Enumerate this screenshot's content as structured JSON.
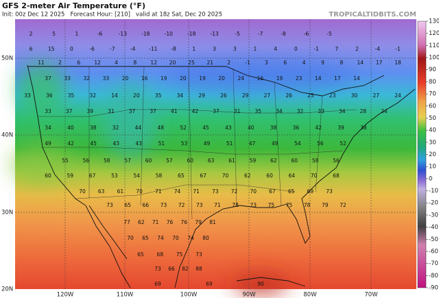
{
  "header": {
    "title": "GFS 2-meter Air Temperature (°F)",
    "subtitle": "Init: 00z Dec 12 2025   Forecast Hour: [210]   valid at 18z Sat, Dec 20 2025",
    "source": "TROPICALTIDBITS.COM"
  },
  "map": {
    "lat_labels": [
      "50N",
      "40N",
      "30N",
      "20N"
    ],
    "lon_labels": [
      "120W",
      "110W",
      "100W",
      "90W",
      "80W",
      "70W"
    ],
    "station_rows": [
      [
        2,
        5,
        1,
        -6,
        -13,
        -18,
        -10,
        -18,
        -13,
        -5,
        -7,
        -8,
        -6,
        -5
      ],
      [
        6,
        15,
        0,
        -6,
        -7,
        -4,
        -11,
        -8,
        1,
        3,
        3,
        1,
        4,
        0,
        -1,
        7,
        2,
        -4,
        -1
      ],
      [
        11,
        2,
        6,
        12,
        4,
        8,
        12,
        20,
        25,
        21,
        2,
        -1,
        3,
        6,
        4,
        9,
        8,
        14,
        17,
        18
      ],
      [
        37,
        33,
        32,
        33,
        20,
        16,
        19,
        20,
        19,
        20,
        24,
        16,
        19,
        23,
        14,
        17,
        14
      ],
      [
        33,
        36,
        35,
        32,
        14,
        20,
        35,
        34,
        29,
        26,
        29,
        27,
        26,
        25,
        23,
        30,
        27,
        24
      ],
      [
        33,
        37,
        39,
        31,
        37,
        37,
        41,
        42,
        37,
        31,
        35,
        34,
        32,
        33,
        34,
        28,
        24
      ],
      [
        34,
        40,
        38,
        32,
        44,
        48,
        52,
        45,
        43,
        40,
        38,
        36,
        42,
        39,
        38
      ],
      [
        49,
        42,
        45,
        43,
        43,
        51,
        53,
        49,
        51,
        47,
        49,
        54,
        56,
        52
      ],
      [
        55,
        56,
        58,
        57,
        60,
        57,
        60,
        63,
        61,
        59,
        62,
        60,
        58,
        56
      ],
      [
        60,
        59,
        67,
        53,
        54,
        58,
        65,
        67,
        70,
        62,
        60,
        64,
        70,
        68
      ],
      [
        70,
        63,
        61,
        70,
        71,
        74,
        71,
        73,
        72,
        70,
        67,
        65,
        69,
        73
      ],
      [
        73,
        65,
        66,
        73,
        72,
        73,
        71,
        78,
        73,
        75,
        75,
        78,
        79,
        72
      ],
      [
        77,
        62,
        71,
        76,
        76,
        79,
        81
      ],
      [
        70,
        65,
        74,
        70,
        74,
        80
      ],
      [
        65,
        68,
        75,
        73
      ],
      [
        73,
        66,
        82,
        88
      ],
      [
        69,
        69,
        90
      ]
    ]
  },
  "colorbar": {
    "ticks": [
      130,
      120,
      110,
      100,
      90,
      80,
      70,
      60,
      50,
      40,
      30,
      20,
      10,
      0,
      -10,
      -20,
      -30,
      -40,
      -50,
      -60,
      -70,
      -80,
      -90
    ]
  }
}
